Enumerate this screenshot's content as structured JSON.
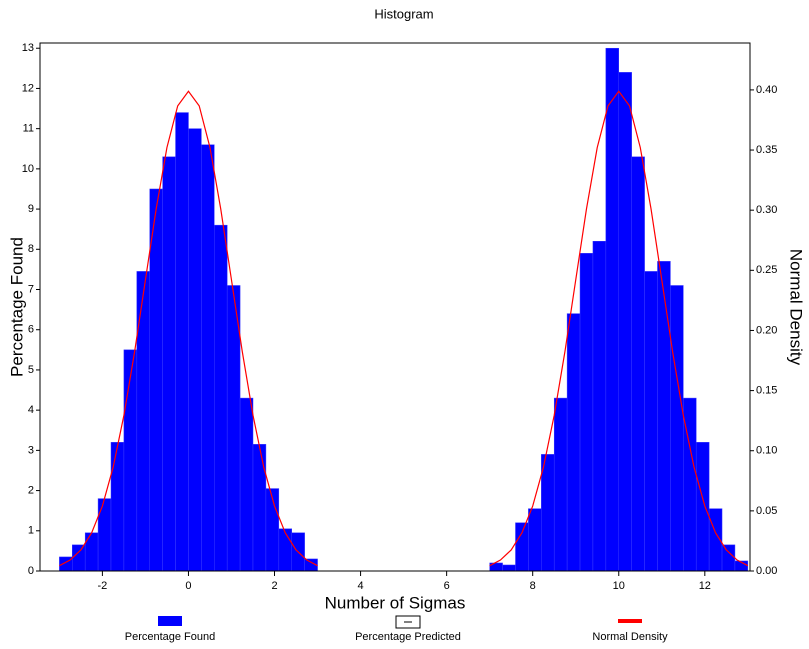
{
  "chart_data": {
    "type": "histogram",
    "title": "Histogram",
    "x_label": "Number of Sigmas",
    "y_label": "Percentage Found",
    "y2_label": "Normal Density",
    "xlim": [
      -3.45,
      13.05
    ],
    "ylim": [
      0,
      13.13
    ],
    "y2lim": [
      0,
      0.439
    ],
    "xticks": [
      -2,
      0,
      2,
      4,
      6,
      8,
      10,
      12
    ],
    "yticks": [
      0,
      1,
      2,
      3,
      4,
      5,
      6,
      7,
      8,
      9,
      10,
      11,
      12,
      13
    ],
    "y2ticks": [
      {
        "value": 0,
        "label": "0.00"
      },
      {
        "value": 0.05,
        "label": "0.05"
      },
      {
        "value": 0.1,
        "label": "0.10"
      },
      {
        "value": 0.15,
        "label": "0.15"
      },
      {
        "value": 0.2,
        "label": "0.20"
      },
      {
        "value": 0.25,
        "label": "0.25"
      },
      {
        "value": 0.3,
        "label": "0.30"
      },
      {
        "value": 0.35,
        "label": "0.35"
      },
      {
        "value": 0.4,
        "label": "0.40"
      }
    ],
    "series": [
      {
        "name": "Percentage Found",
        "color": "#0000ff",
        "groups": [
          {
            "bins": [
              -3.0,
              -2.7,
              -2.4,
              -2.1,
              -1.8,
              -1.5,
              -1.2,
              -0.9,
              -0.6,
              -0.3,
              0.0,
              0.3,
              0.6,
              0.9,
              1.2,
              1.5,
              1.8,
              2.1,
              2.4,
              2.7,
              3.0
            ],
            "values": [
              0.35,
              0.65,
              0.95,
              1.8,
              3.2,
              5.5,
              7.45,
              9.5,
              10.3,
              11.4,
              11.0,
              10.6,
              8.6,
              7.1,
              4.3,
              3.15,
              2.05,
              1.05,
              0.95,
              0.3
            ]
          },
          {
            "bins": [
              7.0,
              7.3,
              7.6,
              7.9,
              8.2,
              8.5,
              8.8,
              9.1,
              9.4,
              9.7,
              10.0,
              10.3,
              10.6,
              10.9,
              11.2,
              11.5,
              11.8,
              12.1,
              12.4,
              12.7,
              13.0
            ],
            "values": [
              0.2,
              0.15,
              1.2,
              1.55,
              2.9,
              4.3,
              6.4,
              7.9,
              8.2,
              13.0,
              12.4,
              10.3,
              7.45,
              7.7,
              7.1,
              4.3,
              3.2,
              1.55,
              0.65,
              0.25
            ]
          }
        ]
      },
      {
        "name": "Percentage Predicted",
        "color": "#000000"
      },
      {
        "name": "Normal Density",
        "color": "#ff0000",
        "axis": "y2",
        "x": [
          -3,
          -2.75,
          -2.5,
          -2.25,
          -2,
          -1.75,
          -1.5,
          -1.25,
          -1,
          -0.75,
          -0.5,
          -0.25,
          0,
          0.25,
          0.5,
          0.75,
          1,
          1.25,
          1.5,
          1.75,
          2,
          2.25,
          2.5,
          2.75,
          3,
          5,
          7,
          7.25,
          7.5,
          7.75,
          8,
          8.25,
          8.5,
          8.75,
          9,
          9.25,
          9.5,
          9.75,
          10,
          10.25,
          10.5,
          10.75,
          11,
          11.25,
          11.5,
          11.75,
          12,
          12.25,
          12.5,
          12.75,
          13
        ],
        "values": [
          0.0044,
          0.0091,
          0.0175,
          0.0317,
          0.054,
          0.0863,
          0.1295,
          0.1826,
          0.242,
          0.3011,
          0.3521,
          0.3867,
          0.3989,
          0.3867,
          0.3521,
          0.3011,
          0.242,
          0.1826,
          0.1295,
          0.0863,
          0.054,
          0.0317,
          0.0175,
          0.0091,
          0.0044,
          null,
          0.0044,
          0.0091,
          0.0175,
          0.0317,
          0.054,
          0.0863,
          0.1295,
          0.1826,
          0.242,
          0.3011,
          0.3521,
          0.3867,
          0.3989,
          0.3867,
          0.3521,
          0.3011,
          0.242,
          0.1826,
          0.1295,
          0.0863,
          0.054,
          0.0317,
          0.0175,
          0.0091,
          0.0044
        ]
      }
    ]
  }
}
